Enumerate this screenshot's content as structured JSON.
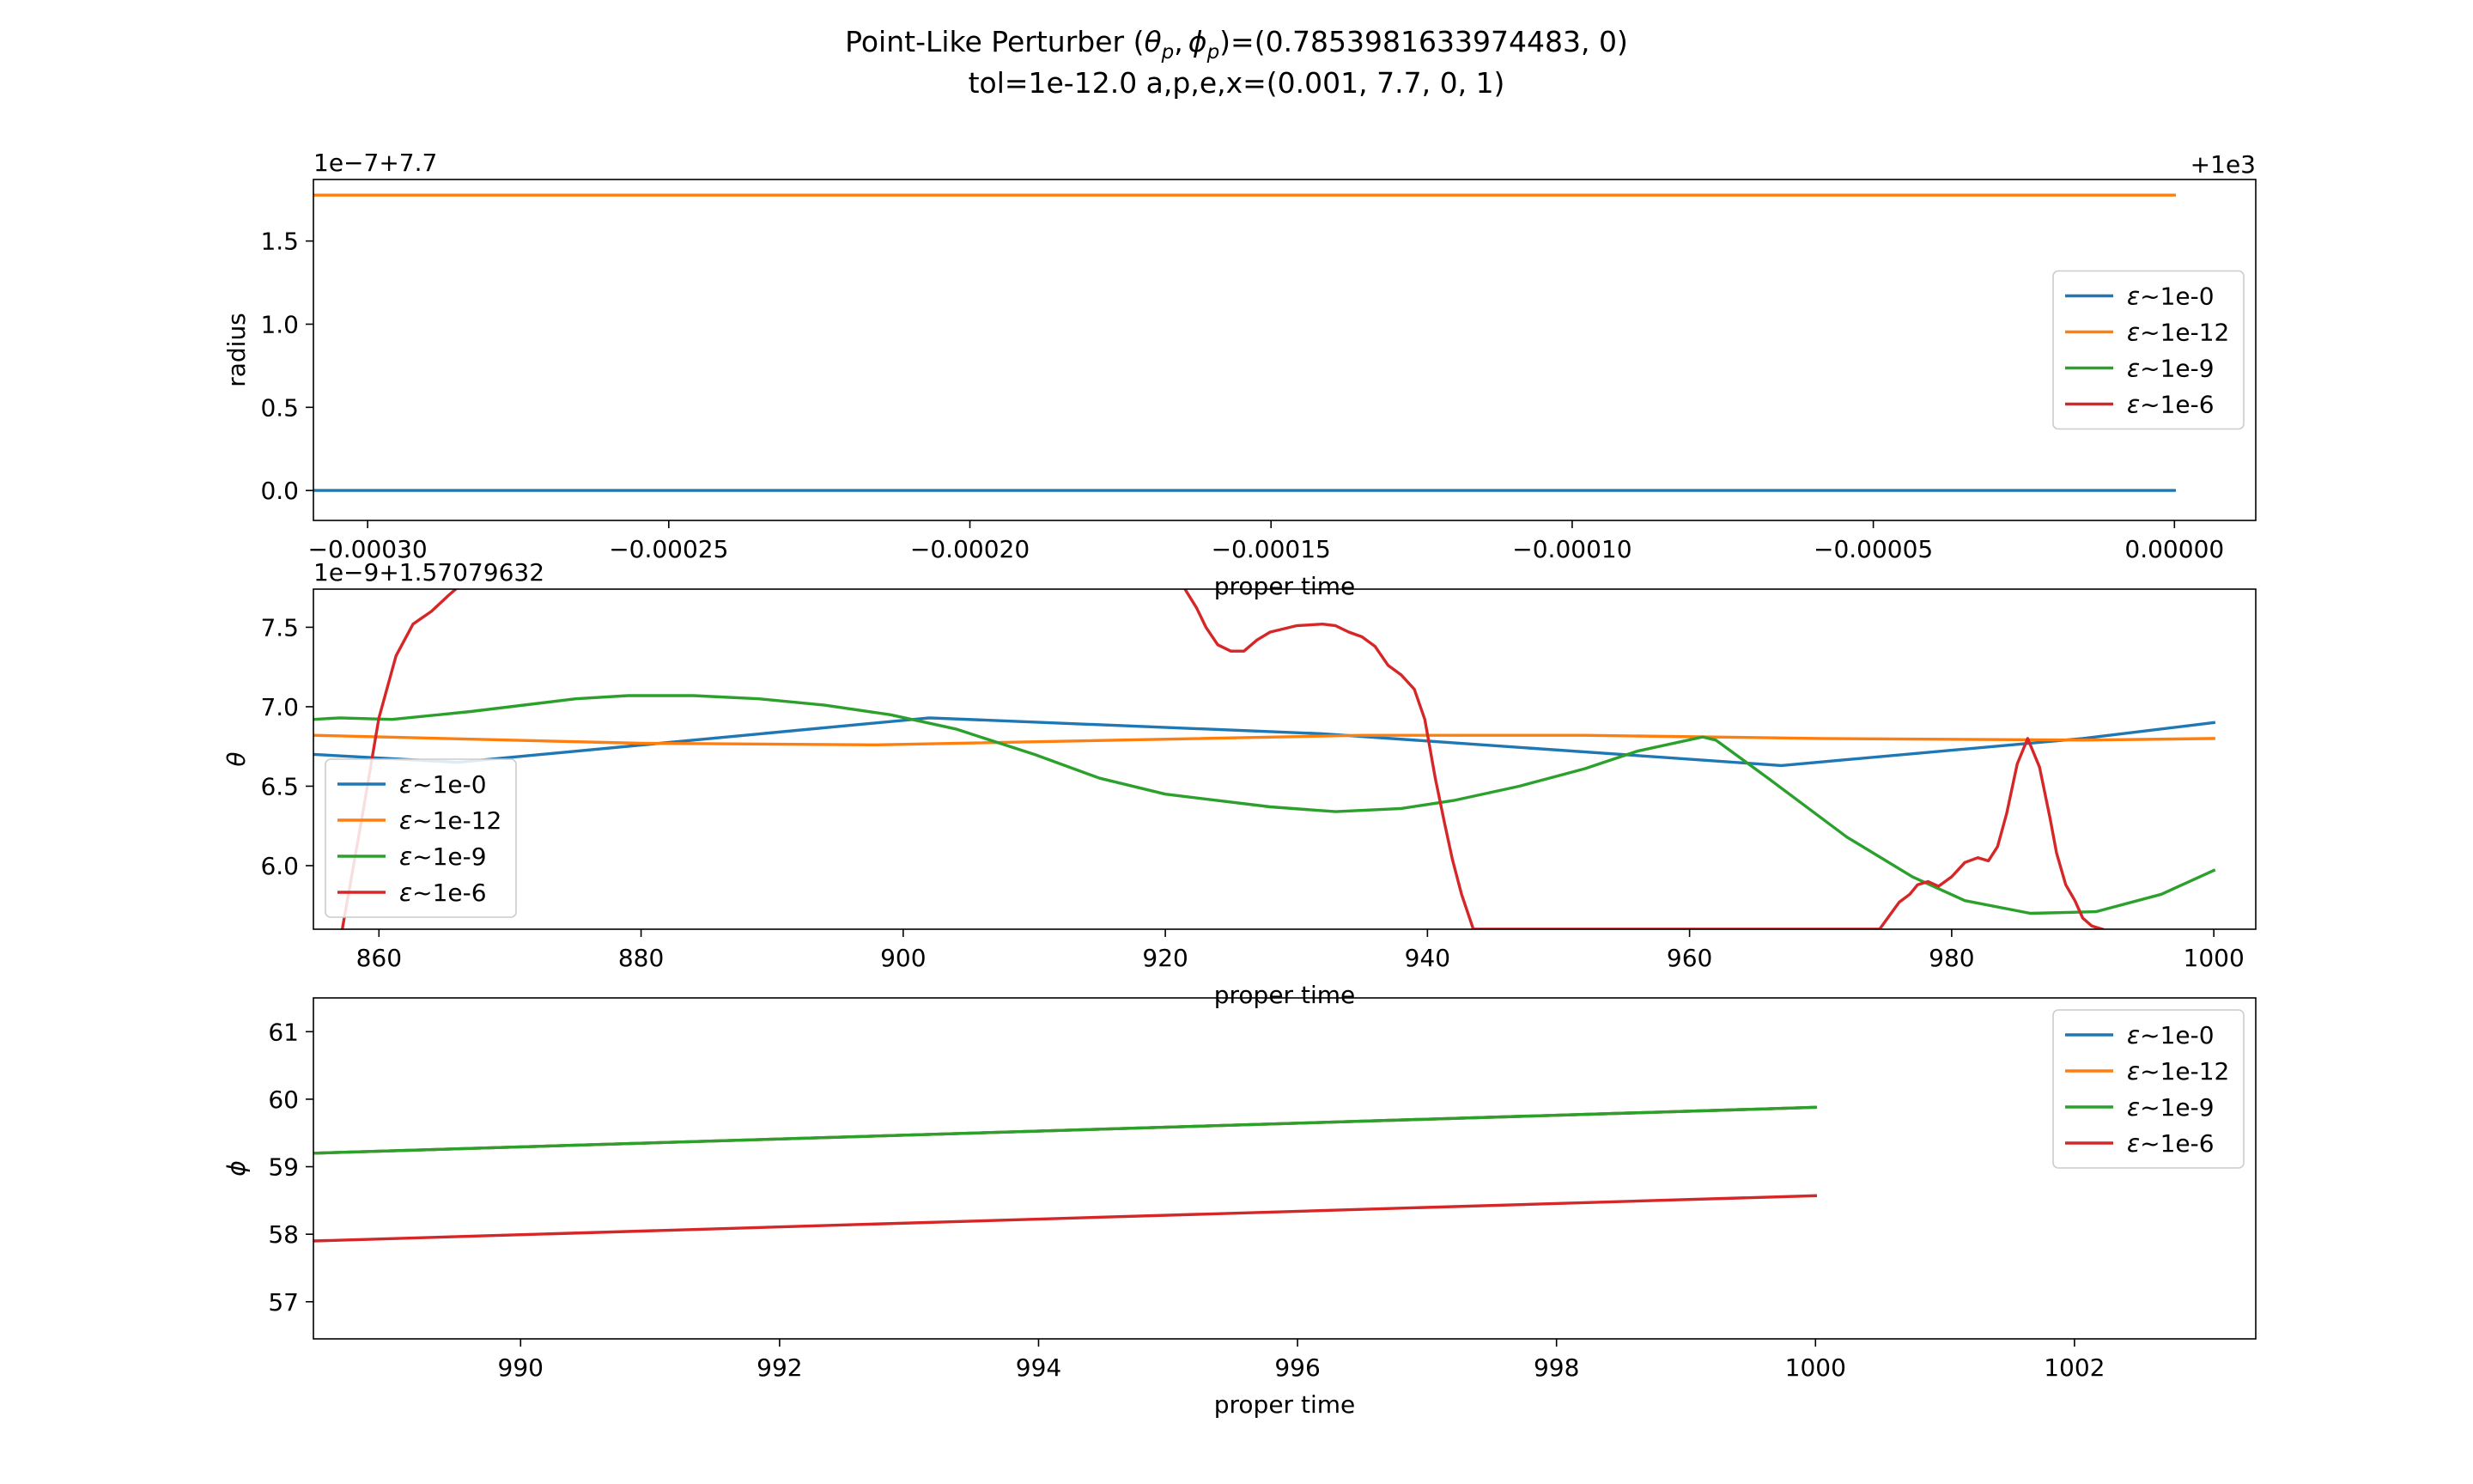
{
  "figure": {
    "title_line1_pre": "Point-Like Perturber (",
    "theta_sym": "θ",
    "phi_sym": "ϕ",
    "sub_p": "p",
    "title_line1_comma": ",",
    "title_line1_post": ")=(0.7853981633974483, 0)",
    "title_line2": "tol=1e-12.0 a,p,e,x=(0.001, 7.7, 0, 1)"
  },
  "colors": {
    "C0": "#1f77b4",
    "C1": "#ff7f0e",
    "C2": "#2ca02c",
    "C3": "#d62728"
  },
  "chart_data": [
    {
      "type": "line",
      "ylabel": "radius",
      "xlabel": "proper time",
      "y_offset_text": "1e−7+7.7",
      "x_offset_text": "+1e3",
      "xlim": [
        -0.000309,
        1.35e-05
      ],
      "ylim": [
        -0.18,
        1.87
      ],
      "xticks": [
        -0.0003,
        -0.00025,
        -0.0002,
        -0.00015,
        -0.0001,
        -5e-05,
        0.0
      ],
      "xtick_labels": [
        "−0.00030",
        "−0.00025",
        "−0.00020",
        "−0.00015",
        "−0.00010",
        "−0.00005",
        "0.00000"
      ],
      "yticks": [
        0.0,
        0.5,
        1.0,
        1.5
      ],
      "ytick_labels": [
        "0.0",
        "0.5",
        "1.0",
        "1.5"
      ],
      "legend_loc": "center right",
      "series": [
        {
          "name": "ε~1e-0",
          "color": "#1f77b4",
          "x": [
            -0.000309,
            0.0
          ],
          "y": [
            0.0,
            0.0
          ]
        },
        {
          "name": "ε~1e-12",
          "color": "#ff7f0e",
          "x": [
            -0.000309,
            0.0
          ],
          "y": [
            1.776,
            1.776
          ]
        },
        {
          "name": "ε~1e-9",
          "color": "#2ca02c",
          "x": [],
          "y": []
        },
        {
          "name": "ε~1e-6",
          "color": "#d62728",
          "x": [],
          "y": []
        }
      ]
    },
    {
      "type": "line",
      "ylabel": "θ",
      "xlabel": "proper time",
      "y_offset_text": "1e−9+1.57079632",
      "xlim": [
        855,
        1003.2
      ],
      "ylim": [
        5.6,
        7.74
      ],
      "xticks": [
        860,
        880,
        900,
        920,
        940,
        960,
        980,
        1000
      ],
      "xtick_labels": [
        "860",
        "880",
        "900",
        "920",
        "940",
        "960",
        "980",
        "1000"
      ],
      "yticks": [
        6.0,
        6.5,
        7.0,
        7.5
      ],
      "ytick_labels": [
        "6.0",
        "6.5",
        "7.0",
        "7.5"
      ],
      "legend_loc": "lower left",
      "series": [
        {
          "name": "ε~1e-0",
          "color": "#1f77b4",
          "x": [
            855,
            866,
            884,
            902,
            932,
            967,
            990,
            1000
          ],
          "y": [
            6.7,
            6.65,
            6.79,
            6.93,
            6.83,
            6.63,
            6.8,
            6.9
          ]
        },
        {
          "name": "ε~1e-12",
          "color": "#ff7f0e",
          "x": [
            855,
            880,
            898,
            935,
            952,
            970,
            990,
            1000
          ],
          "y": [
            6.82,
            6.77,
            6.76,
            6.82,
            6.82,
            6.8,
            6.79,
            6.8
          ]
        },
        {
          "name": "ε~1e-9",
          "color": "#2ca02c",
          "x": [
            855,
            857,
            861,
            867,
            875,
            879,
            884,
            889,
            894,
            899,
            904,
            910,
            915,
            920,
            928,
            933,
            938,
            942,
            947,
            952,
            956,
            961,
            962,
            966,
            972,
            977,
            981,
            986,
            991,
            996,
            1000
          ],
          "y": [
            6.92,
            6.93,
            6.92,
            6.97,
            7.05,
            7.07,
            7.07,
            7.05,
            7.01,
            6.95,
            6.86,
            6.7,
            6.55,
            6.45,
            6.37,
            6.34,
            6.36,
            6.41,
            6.5,
            6.61,
            6.72,
            6.81,
            6.79,
            6.55,
            6.18,
            5.93,
            5.78,
            5.7,
            5.71,
            5.82,
            5.97
          ]
        },
        {
          "name": "ε~1e-6",
          "color": "#d62728",
          "x": [
            857.2,
            858.7,
            860,
            861.3,
            862.6,
            864,
            865.3,
            866.7,
            867.6,
            868.5,
            920.6,
            921.5,
            922.4,
            923.1,
            924,
            925,
            926,
            927,
            928,
            930,
            932,
            933,
            934,
            935,
            936,
            937,
            938,
            939,
            939.8,
            940.6,
            941.3,
            941.9,
            942.6,
            943.5,
            974.5,
            975.2,
            976,
            976.8,
            977.4,
            978.2,
            979,
            980,
            981,
            982,
            982.8,
            983.5,
            984.2,
            985,
            985.8,
            986.7,
            987.5,
            988,
            988.7,
            989.4,
            990,
            990.7,
            991.5
          ],
          "y": [
            5.6,
            6.3,
            6.93,
            7.32,
            7.52,
            7.6,
            7.7,
            7.8,
            7.92,
            8.1,
            8.0,
            7.74,
            7.62,
            7.5,
            7.39,
            7.35,
            7.35,
            7.42,
            7.47,
            7.51,
            7.52,
            7.51,
            7.47,
            7.44,
            7.38,
            7.26,
            7.2,
            7.11,
            6.92,
            6.55,
            6.27,
            6.04,
            5.82,
            5.6,
            5.6,
            5.68,
            5.77,
            5.82,
            5.88,
            5.9,
            5.87,
            5.93,
            6.02,
            6.05,
            6.03,
            6.12,
            6.33,
            6.64,
            6.8,
            6.62,
            6.3,
            6.08,
            5.88,
            5.78,
            5.67,
            5.62,
            5.6
          ]
        }
      ]
    },
    {
      "type": "line",
      "ylabel": "ϕ",
      "xlabel": "proper time",
      "xlim": [
        988.4,
        1003.4
      ],
      "ylim": [
        56.45,
        61.5
      ],
      "xticks": [
        990,
        992,
        994,
        996,
        998,
        1000,
        1002
      ],
      "xtick_labels": [
        "990",
        "992",
        "994",
        "996",
        "998",
        "1000",
        "1002"
      ],
      "yticks": [
        57,
        58,
        59,
        60,
        61
      ],
      "ytick_labels": [
        "57",
        "58",
        "59",
        "60",
        "61"
      ],
      "legend_loc": "upper right",
      "series": [
        {
          "name": "ε~1e-0",
          "color": "#1f77b4",
          "x": [
            988.4,
            1000
          ],
          "y": [
            59.2,
            59.88
          ]
        },
        {
          "name": "ε~1e-12",
          "color": "#ff7f0e",
          "x": [
            988.4,
            1000
          ],
          "y": [
            59.2,
            59.88
          ]
        },
        {
          "name": "ε~1e-9",
          "color": "#2ca02c",
          "x": [
            988.4,
            1000
          ],
          "y": [
            59.2,
            59.88
          ]
        },
        {
          "name": "ε~1e-6",
          "color": "#d62728",
          "x": [
            988.4,
            1000
          ],
          "y": [
            57.9,
            58.57
          ]
        }
      ]
    }
  ]
}
